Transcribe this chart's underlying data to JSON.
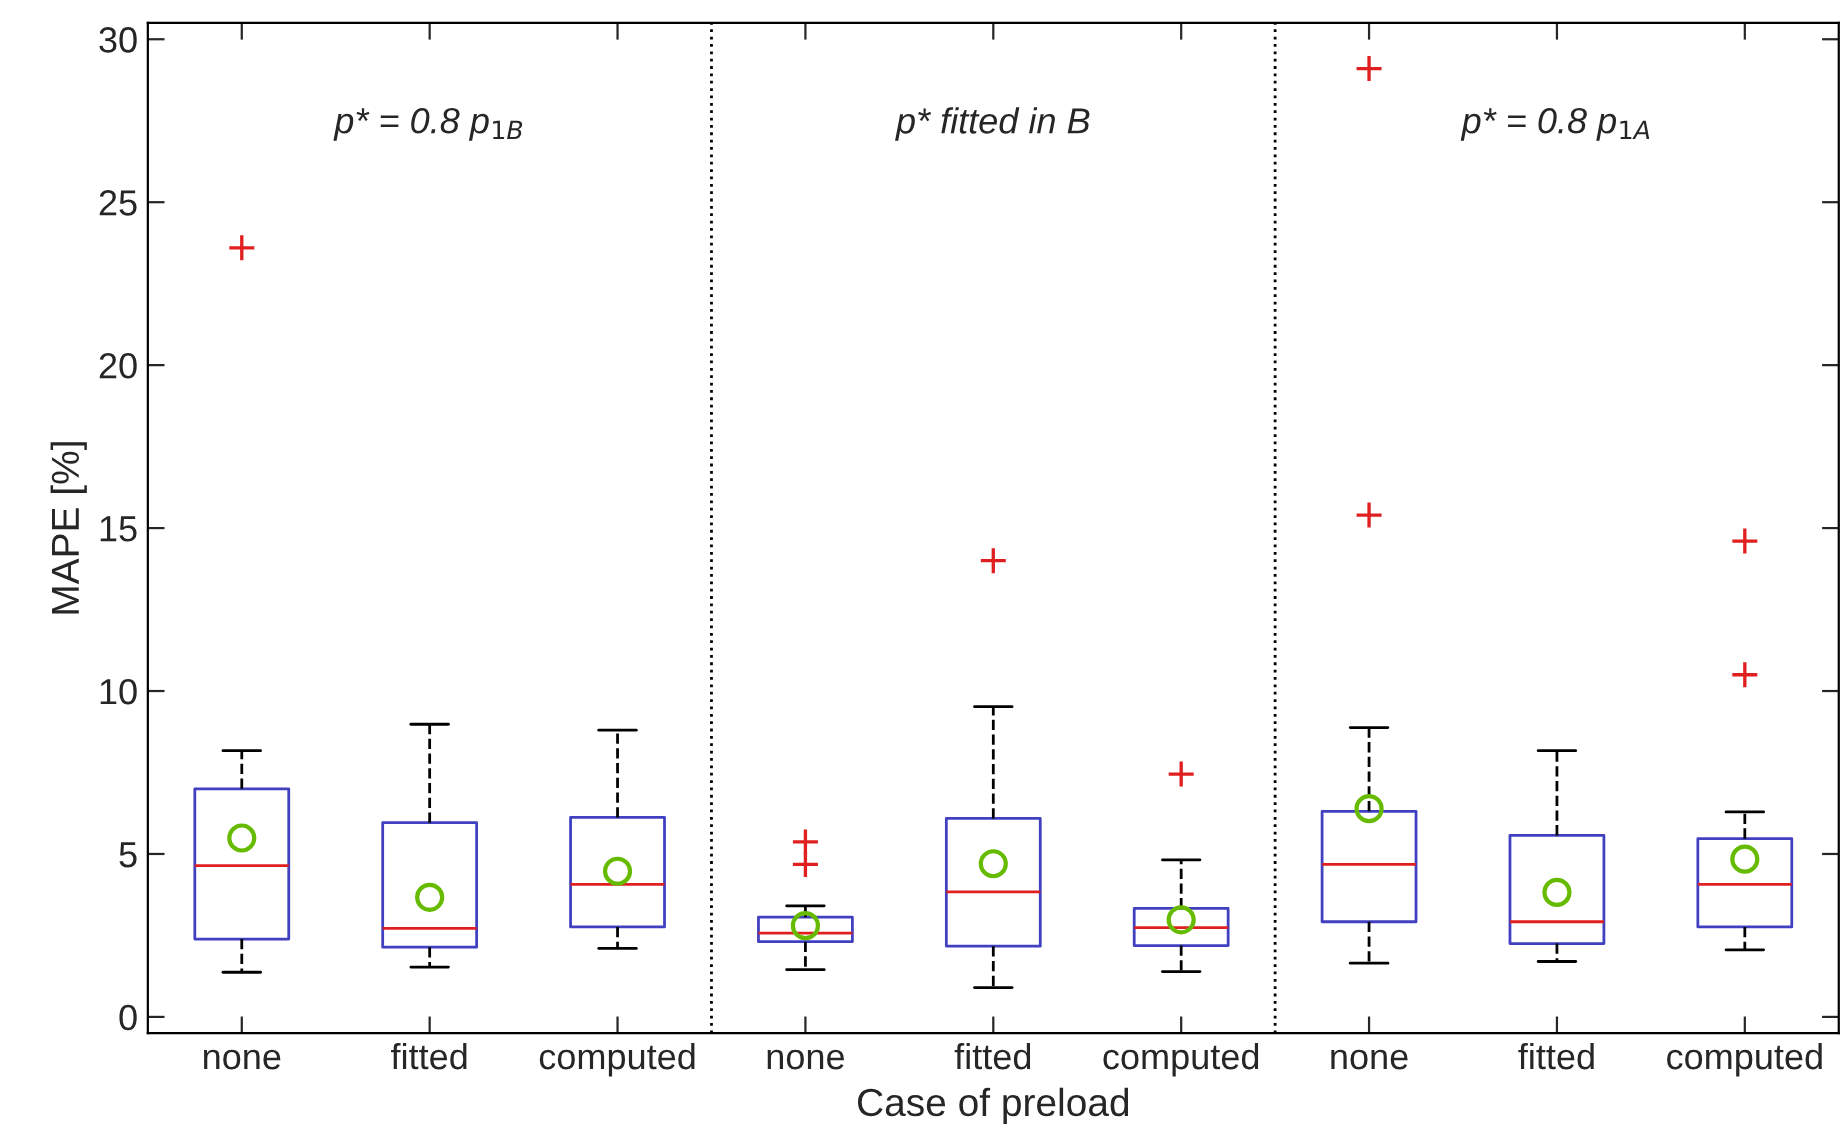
{
  "chart_data": {
    "type": "box",
    "xlabel": "Case of preload",
    "ylabel": "MAPE [%]",
    "categories": [
      "none",
      "fitted",
      "computed",
      "none",
      "fitted",
      "computed",
      "none",
      "fitted",
      "computed"
    ],
    "series": [
      {
        "color": "#4040c0",
        "boxes": [
          {
            "low": 1.37,
            "q1": 2.39,
            "median": 4.64,
            "q3": 7.0,
            "high": 8.17,
            "mean": 5.49,
            "outliers": [
              23.6
            ]
          },
          {
            "low": 1.53,
            "q1": 2.14,
            "median": 2.72,
            "q3": 5.96,
            "high": 8.98,
            "mean": 3.67
          },
          {
            "low": 2.1,
            "q1": 2.76,
            "median": 4.07,
            "q3": 6.12,
            "high": 8.8,
            "mean": 4.47
          },
          {
            "low": 1.45,
            "q1": 2.31,
            "median": 2.57,
            "q3": 3.06,
            "high": 3.41,
            "mean": 2.8,
            "outliers": [
              5.37,
              4.68
            ]
          },
          {
            "low": 0.9,
            "q1": 2.17,
            "median": 3.84,
            "q3": 6.09,
            "high": 9.52,
            "mean": 4.7,
            "outliers": [
              14.0
            ]
          },
          {
            "low": 1.39,
            "q1": 2.19,
            "median": 2.74,
            "q3": 3.33,
            "high": 4.82,
            "mean": 2.98,
            "outliers": [
              7.45
            ]
          },
          {
            "low": 1.65,
            "q1": 2.92,
            "median": 4.68,
            "q3": 6.31,
            "high": 8.88,
            "mean": 6.39,
            "outliers": [
              29.1,
              15.4
            ]
          },
          {
            "low": 1.7,
            "q1": 2.25,
            "median": 2.92,
            "q3": 5.57,
            "high": 8.17,
            "mean": 3.82
          },
          {
            "low": 2.06,
            "q1": 2.76,
            "median": 4.07,
            "q3": 5.47,
            "high": 6.29,
            "mean": 4.84,
            "outliers": [
              10.5,
              14.6
            ]
          }
        ]
      }
    ],
    "ylim": [
      -0.5,
      30.5
    ],
    "yticks": [
      0,
      5,
      10,
      15,
      20,
      25,
      30
    ],
    "line_style": "dashed",
    "grid": false,
    "legend": false,
    "annotations": [
      "p* = 0.8 p$_{1B}$",
      "p* fitted in B",
      "p* = 0.8 p$_{1A}$"
    ]
  }
}
